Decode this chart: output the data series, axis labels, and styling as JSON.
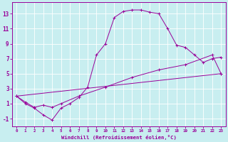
{
  "xlabel": "Windchill (Refroidissement éolien,°C)",
  "bg_color": "#c8eef0",
  "line_color": "#990099",
  "grid_color": "#ffffff",
  "xlim_min": -0.5,
  "xlim_max": 23.5,
  "ylim_min": -2.0,
  "ylim_max": 14.5,
  "yticks": [
    -1,
    1,
    3,
    5,
    7,
    9,
    11,
    13
  ],
  "xticks": [
    0,
    1,
    2,
    3,
    4,
    5,
    6,
    7,
    8,
    9,
    10,
    11,
    12,
    13,
    14,
    15,
    16,
    17,
    18,
    19,
    20,
    21,
    22,
    23
  ],
  "line1_x": [
    0,
    1,
    2,
    3,
    4,
    5,
    6,
    7,
    8,
    9,
    10,
    11,
    12,
    13,
    14,
    15,
    16,
    17,
    18,
    19,
    20,
    21,
    22,
    23
  ],
  "line1_y": [
    2.0,
    1.0,
    0.4,
    -0.5,
    -1.2,
    0.4,
    1.0,
    1.8,
    3.2,
    7.5,
    9.0,
    12.5,
    13.3,
    13.5,
    13.5,
    13.2,
    13.0,
    11.0,
    8.8,
    8.5,
    7.5,
    6.5,
    7.0,
    7.2
  ],
  "line2_x": [
    0,
    1,
    2,
    3,
    4,
    5,
    7,
    10,
    13,
    16,
    19,
    22,
    23
  ],
  "line2_y": [
    2.0,
    1.2,
    0.5,
    0.8,
    0.5,
    1.0,
    2.0,
    3.2,
    4.5,
    5.5,
    6.2,
    7.5,
    5.0
  ],
  "line3_x": [
    0,
    23
  ],
  "line3_y": [
    2.0,
    5.0
  ]
}
